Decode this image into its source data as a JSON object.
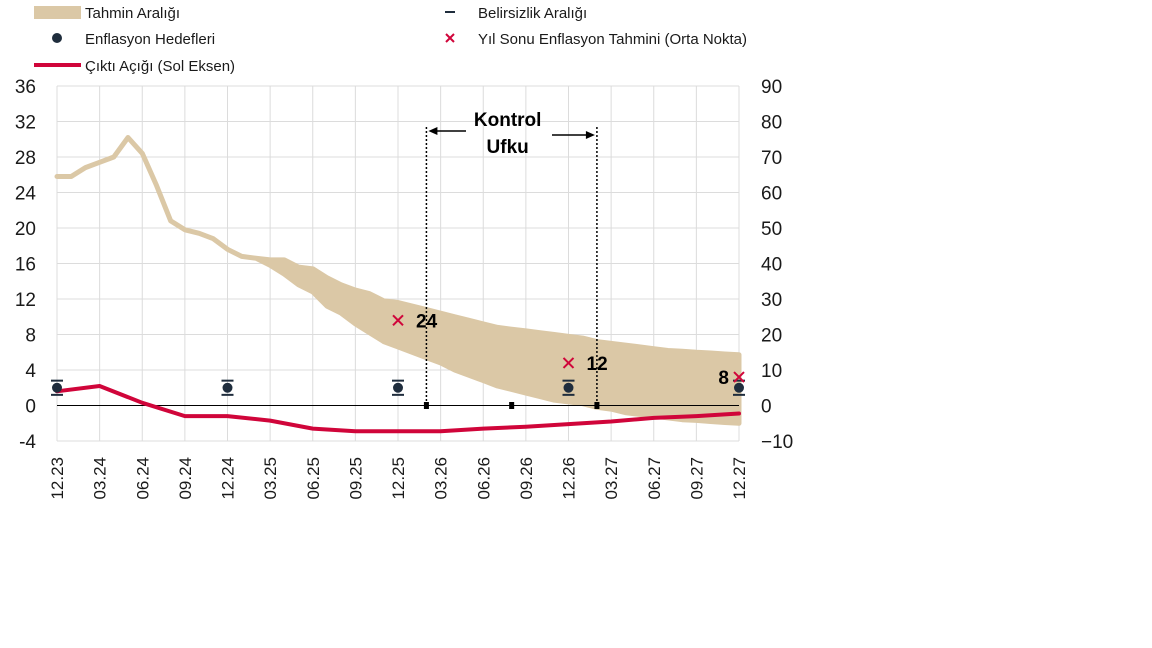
{
  "chart_data": {
    "type": "line",
    "legend": {
      "placement": "top",
      "items": [
        {
          "key": "band",
          "label": "Tahmin Aralığı"
        },
        {
          "key": "unc",
          "label": "Belirsizlik Aralığı"
        },
        {
          "key": "target",
          "label": "Enflasyon Hedefleri"
        },
        {
          "key": "forecast",
          "label": "Yıl Sonu Enflasyon Tahmini (Orta Nokta)"
        },
        {
          "key": "gap",
          "label": "Çıktı Açığı (Sol Eksen)"
        }
      ]
    },
    "x_labels": [
      "12.23",
      "03.24",
      "06.24",
      "09.24",
      "12.24",
      "03.25",
      "06.25",
      "09.25",
      "12.25",
      "03.26",
      "06.26",
      "09.26",
      "12.26",
      "03.27",
      "06.27",
      "09.27",
      "12.27"
    ],
    "left_axis": {
      "min": -4,
      "max": 36,
      "ticks": [
        -4,
        0,
        4,
        8,
        12,
        16,
        20,
        24,
        28,
        32,
        36
      ]
    },
    "right_axis": {
      "min": -10,
      "max": 90,
      "ticks": [
        -10,
        0,
        10,
        20,
        30,
        40,
        50,
        60,
        70,
        80,
        90
      ]
    },
    "grid": true,
    "band": {
      "name": "Tahmin Aralığı",
      "x": [
        0,
        1,
        2,
        3,
        4,
        5,
        6,
        7,
        8,
        9,
        10,
        11,
        12,
        13,
        14,
        15,
        16,
        17,
        18,
        19,
        20,
        21,
        22,
        23,
        24,
        25,
        26,
        27,
        28,
        29,
        30,
        31,
        32,
        33,
        34,
        35,
        36,
        37,
        38,
        39,
        40,
        41,
        42,
        43,
        44,
        45,
        46,
        47,
        48
      ],
      "upper": [
        64.5,
        64.5,
        67,
        68.5,
        70,
        75.5,
        71,
        62,
        52,
        49.5,
        48.5,
        47,
        44,
        42,
        41.5,
        41,
        41,
        39,
        38.5,
        36,
        34,
        32.5,
        31.5,
        29.5,
        29,
        28,
        27,
        26,
        25,
        24,
        23,
        22,
        21.5,
        21,
        20.5,
        20,
        19.5,
        19,
        18,
        17.5,
        17,
        16.5,
        16,
        15.5,
        15.3,
        15,
        14.8,
        14.5,
        14.3
      ],
      "lower": [
        64.5,
        64.5,
        67,
        68.5,
        70,
        75.5,
        71,
        62,
        52,
        49.5,
        48.5,
        47,
        44,
        42,
        41.5,
        39.5,
        37,
        34,
        32,
        28,
        26,
        23,
        20.5,
        18,
        16.5,
        15,
        13.5,
        12,
        10,
        8.5,
        7,
        5.5,
        4.5,
        3.5,
        2.5,
        1.5,
        1,
        0.5,
        -0.5,
        -1,
        -2,
        -2.5,
        -3,
        -3.5,
        -4,
        -4.2,
        -4.5,
        -4.8,
        -5
      ]
    },
    "output_gap": {
      "name": "Çıktı Açığı (Sol Eksen)",
      "x": [
        0,
        3,
        6,
        9,
        12,
        15,
        18,
        21,
        24,
        27,
        30,
        33,
        36,
        39,
        42,
        45,
        48
      ],
      "values": [
        1.6,
        2.2,
        0.3,
        -1.2,
        -1.2,
        -1.7,
        -2.6,
        -2.9,
        -2.9,
        -2.9,
        -2.6,
        -2.4,
        -2.1,
        -1.8,
        -1.4,
        -1.2,
        -0.9
      ]
    },
    "targets": {
      "name": "Enflasyon Hedefleri",
      "x": [
        0,
        12,
        24,
        36,
        48
      ],
      "values": [
        5,
        5,
        5,
        5,
        5
      ],
      "uncertainty_low": [
        3,
        3,
        3,
        3,
        3
      ],
      "uncertainty_high": [
        7,
        7,
        7,
        7,
        7
      ]
    },
    "uncertainty_markers": {
      "name": "Belirsizlik Aralığı",
      "x": [
        26,
        32,
        38
      ],
      "values": [
        0,
        0,
        0
      ]
    },
    "forecasts": {
      "name": "Yıl Sonu Enflasyon Tahmini (Orta Nokta)",
      "x": [
        24,
        36,
        48
      ],
      "values": [
        24,
        12,
        8
      ],
      "labels": [
        "24",
        "12",
        "8"
      ]
    },
    "control_horizon": {
      "label_line1": "Kontrol",
      "label_line2": "Ufku",
      "x_start": 26,
      "x_end": 38
    },
    "colors": {
      "band": "#dbc8a6",
      "output_gap": "#d0053a",
      "target": "#1f2d3d",
      "forecast": "#d0053a",
      "grid": "#dcdcdc",
      "zero_line": "#000000"
    }
  }
}
